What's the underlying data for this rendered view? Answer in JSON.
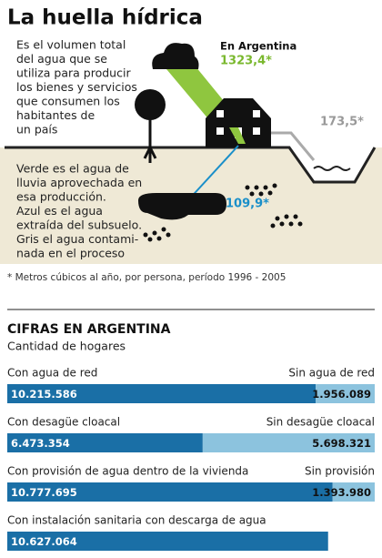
{
  "title": "La huella hídrica",
  "intro": [
    "Es el volumen total",
    "del agua que se",
    "utiliza para producir",
    "los bienes y servicios",
    "que consumen los",
    "habitantes de",
    "un país"
  ],
  "legend_text": [
    "Verde es el agua de",
    "lluvia aprovechada en",
    "esa producción.",
    "Azul es el agua",
    "extraída del subsuelo.",
    "Gris el agua contami-",
    "nada en el proceso"
  ],
  "country_label": "En Argentina",
  "green_value": "1323,4*",
  "grey_value": "173,5*",
  "blue_value": "109,9*",
  "footnote": "* Metros cúbicos al año, por persona, período 1996 - 2005",
  "section_title": "CIFRAS EN ARGENTINA",
  "section_subtitle": "Cantidad de hogares",
  "bars": [
    {
      "label_left": "Con agua de red",
      "label_right": "Sin agua de red",
      "values": [
        10215586,
        1956089
      ],
      "value_labels": [
        "10.215.586",
        "1.956.089"
      ]
    },
    {
      "label_left": "Con desagüe cloacal",
      "label_right": "Sin desagüe cloacal",
      "values": [
        6473354,
        5698321
      ],
      "value_labels": [
        "6.473.354",
        "5.698.321"
      ]
    },
    {
      "label_left": "Con provisión de agua dentro de la vivienda",
      "label_right": "Sin provisión",
      "values": [
        10777695,
        1393980
      ],
      "value_labels": [
        "10.777.695",
        "1.393.980"
      ]
    },
    {
      "label_left": "Con instalación sanitaria con descarga de agua",
      "values": [
        10627064
      ],
      "value_labels": [
        "10.627.064"
      ]
    }
  ]
}
